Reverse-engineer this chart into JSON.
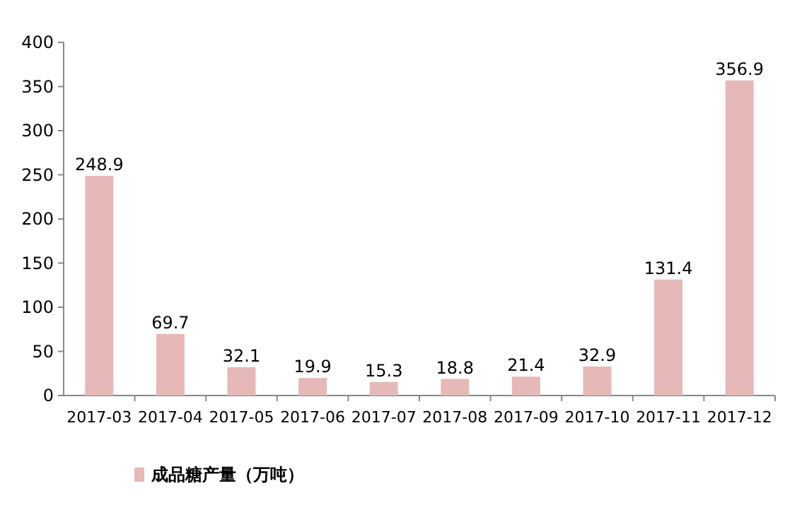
{
  "chart_data": {
    "type": "bar",
    "categories": [
      "2017-03",
      "2017-04",
      "2017-05",
      "2017-06",
      "2017-07",
      "2017-08",
      "2017-09",
      "2017-10",
      "2017-11",
      "2017-12"
    ],
    "series": [
      {
        "name": "成品糖产量（万吨）",
        "color": "#e6b9b8",
        "values": [
          248.9,
          69.7,
          32.1,
          19.9,
          15.3,
          18.8,
          21.4,
          32.9,
          131.4,
          356.9
        ]
      }
    ],
    "ylim": [
      0,
      400
    ],
    "yticks": [
      0,
      50,
      100,
      150,
      200,
      250,
      300,
      350,
      400
    ],
    "data_labels": true,
    "legend": "bottom left"
  }
}
